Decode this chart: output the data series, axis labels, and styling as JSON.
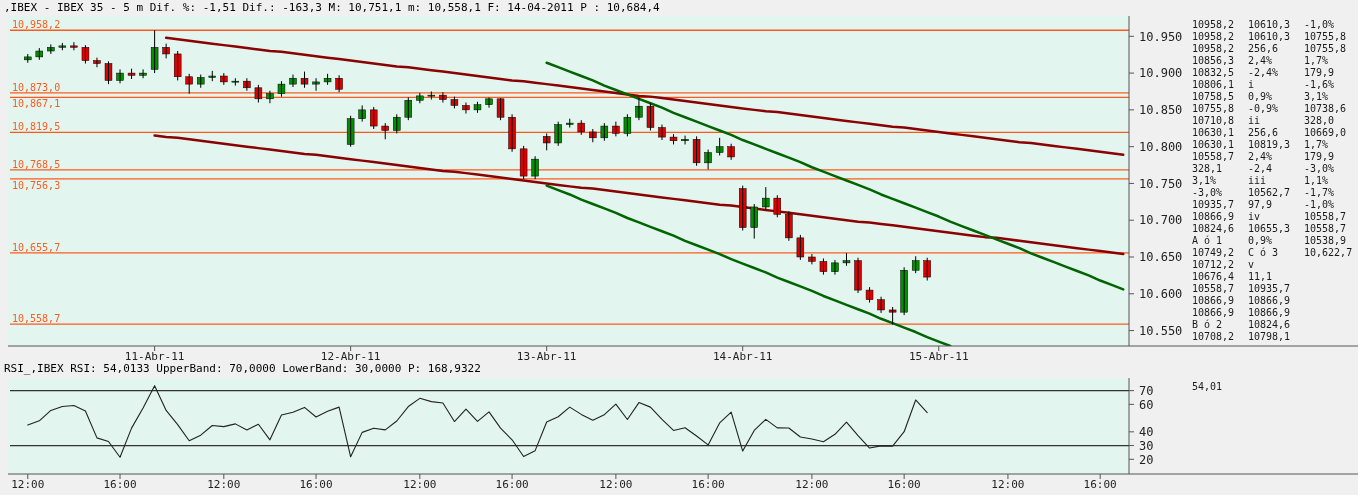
{
  "chart_data": [
    {
      "type": "candlestick",
      "title": ",IBEX - IBEX 35 -  5 m Dif. %: -1,51 Dif.: -163,3 M: 10,751,1 m: 10,558,1 F: 14-04-2011 P : 10,684,4",
      "categories": [
        null,
        null,
        null,
        null,
        null,
        null,
        null,
        null,
        null,
        null,
        null,
        "11-Abr-11",
        null,
        null,
        null,
        null,
        null,
        null,
        null,
        null,
        null,
        null,
        null,
        null,
        null,
        null,
        null,
        null,
        "12-Abr-11",
        null,
        null,
        null,
        null,
        null,
        null,
        null,
        null,
        null,
        null,
        null,
        null,
        null,
        null,
        null,
        null,
        "13-Abr-11",
        null,
        null,
        null,
        null,
        null,
        null,
        null,
        null,
        null,
        null,
        null,
        null,
        null,
        null,
        null,
        null,
        "14-Abr-11",
        null,
        null,
        null,
        null,
        null,
        null,
        null,
        null,
        null,
        null,
        null,
        null,
        null,
        null,
        null,
        null,
        "15-Abr-11",
        null,
        null,
        null,
        null,
        null,
        null,
        null,
        null,
        null,
        null,
        null,
        null,
        null,
        null,
        null,
        null
      ],
      "ohlc": [
        [
          10918,
          10926,
          10914,
          10922
        ],
        [
          10922,
          10934,
          10918,
          10930
        ],
        [
          10930,
          10939,
          10926,
          10935
        ],
        [
          10935,
          10941,
          10931,
          10937
        ],
        [
          10937,
          10942,
          10931,
          10935
        ],
        [
          10935,
          10938,
          10913,
          10917
        ],
        [
          10917,
          10921,
          10908,
          10913
        ],
        [
          10913,
          10916,
          10885,
          10890
        ],
        [
          10890,
          10905,
          10886,
          10900
        ],
        [
          10900,
          10906,
          10892,
          10897
        ],
        [
          10897,
          10905,
          10893,
          10900
        ],
        [
          10905,
          10958.2,
          10900,
          10935
        ],
        [
          10935,
          10940,
          10920,
          10926
        ],
        [
          10926,
          10930,
          10890,
          10895
        ],
        [
          10895,
          10899,
          10872,
          10885
        ],
        [
          10885,
          10898,
          10880,
          10894
        ],
        [
          10894,
          10903,
          10889,
          10896
        ],
        [
          10896,
          10900,
          10884,
          10888
        ],
        [
          10888,
          10893,
          10883,
          10889
        ],
        [
          10889,
          10893,
          10876,
          10880
        ],
        [
          10880,
          10884,
          10860,
          10865
        ],
        [
          10865,
          10876,
          10859,
          10872
        ],
        [
          10872,
          10889,
          10868,
          10885
        ],
        [
          10885,
          10898,
          10881,
          10893
        ],
        [
          10893,
          10902,
          10880,
          10885
        ],
        [
          10885,
          10893,
          10876,
          10888
        ],
        [
          10888,
          10899,
          10884,
          10893
        ],
        [
          10893,
          10897,
          10874,
          10878
        ],
        [
          10803,
          10842,
          10800,
          10838
        ],
        [
          10838,
          10856,
          10834,
          10850
        ],
        [
          10850,
          10854,
          10824,
          10828
        ],
        [
          10828,
          10832,
          10810,
          10822
        ],
        [
          10822,
          10844,
          10818,
          10840
        ],
        [
          10840,
          10867,
          10836,
          10863
        ],
        [
          10863,
          10873,
          10859,
          10869
        ],
        [
          10869,
          10875,
          10864,
          10870
        ],
        [
          10870,
          10874,
          10860,
          10864
        ],
        [
          10864,
          10868,
          10852,
          10856
        ],
        [
          10856,
          10860,
          10845,
          10850
        ],
        [
          10850,
          10861,
          10846,
          10857
        ],
        [
          10857,
          10866.9,
          10853,
          10865
        ],
        [
          10865,
          10866,
          10836,
          10840
        ],
        [
          10840,
          10844,
          10793,
          10797
        ],
        [
          10797,
          10801,
          10756,
          10760
        ],
        [
          10760,
          10787,
          10755.8,
          10783
        ],
        [
          10814,
          10818,
          10795,
          10805
        ],
        [
          10805,
          10834,
          10801,
          10830
        ],
        [
          10830,
          10838,
          10826,
          10832
        ],
        [
          10832,
          10836,
          10816,
          10820
        ],
        [
          10820,
          10824,
          10806,
          10812
        ],
        [
          10812,
          10832,
          10808,
          10828
        ],
        [
          10828,
          10834,
          10814,
          10818
        ],
        [
          10818,
          10844,
          10814,
          10840
        ],
        [
          10840,
          10866.9,
          10836,
          10855
        ],
        [
          10855,
          10859,
          10822,
          10826
        ],
        [
          10826,
          10830,
          10809,
          10813
        ],
        [
          10813,
          10817,
          10803,
          10808
        ],
        [
          10808,
          10815,
          10803,
          10810
        ],
        [
          10810,
          10814,
          10774,
          10778
        ],
        [
          10778,
          10796,
          10769,
          10792
        ],
        [
          10792,
          10812,
          10788,
          10800
        ],
        [
          10800,
          10804,
          10782,
          10786
        ],
        [
          10743,
          10747,
          10686,
          10690
        ],
        [
          10690,
          10722,
          10675,
          10718
        ],
        [
          10718,
          10745,
          10714,
          10730
        ],
        [
          10730,
          10734,
          10704,
          10708
        ],
        [
          10708,
          10712,
          10672,
          10676
        ],
        [
          10676,
          10680,
          10646,
          10650
        ],
        [
          10650,
          10654,
          10640,
          10644
        ],
        [
          10644,
          10648,
          10626,
          10630
        ],
        [
          10630,
          10646,
          10626,
          10642
        ],
        [
          10642,
          10655.3,
          10638,
          10645
        ],
        [
          10645,
          10649,
          10601,
          10605
        ],
        [
          10605,
          10609,
          10588,
          10592
        ],
        [
          10592,
          10596,
          10574,
          10578
        ],
        [
          10578,
          10582,
          10558.1,
          10575
        ],
        [
          10575,
          10636,
          10571,
          10632
        ],
        [
          10632,
          10651,
          10628,
          10645
        ],
        [
          10645,
          10649,
          10618,
          10622.7
        ],
        null,
        null,
        null,
        null,
        null,
        null,
        null,
        null,
        null,
        null,
        null,
        null,
        null,
        null,
        null,
        null,
        null
      ],
      "series": [
        {
          "type": "line",
          "color": "#8b0000",
          "values": [
            null,
            null,
            null,
            null,
            null,
            null,
            null,
            null,
            null,
            null,
            null,
            null,
            10948,
            10946,
            10944,
            10942,
            10940,
            10938,
            10936,
            10934,
            10932,
            10930,
            10929,
            10927,
            10925,
            10923,
            10921,
            10919,
            10917,
            10915,
            10913,
            10911,
            10909,
            10908,
            10906,
            10904,
            10902,
            10900,
            10898,
            10896,
            10894,
            10892,
            10890,
            10889,
            10887,
            10885,
            10883,
            10881,
            10879,
            10877,
            10875,
            10873,
            10871,
            10869,
            10868,
            10866,
            10864,
            10862,
            10860,
            10858,
            10856,
            10854,
            10852,
            10850,
            10848,
            10847,
            10845,
            10843,
            10841,
            10839,
            10837,
            10835,
            10833,
            10831,
            10829,
            10827,
            10826,
            10824,
            10822,
            10820,
            10818,
            10816,
            10814,
            10812,
            10810,
            10808,
            10806,
            10805,
            10803,
            10801,
            10799,
            10797,
            10795,
            10793,
            10791,
            10789
          ]
        },
        {
          "type": "line",
          "color": "#8b0000",
          "values": [
            null,
            null,
            null,
            null,
            null,
            null,
            null,
            null,
            null,
            null,
            null,
            10815,
            10813,
            10812,
            10810,
            10808,
            10806,
            10804,
            10802,
            10800,
            10798,
            10796,
            10794,
            10792,
            10790,
            10789,
            10787,
            10785,
            10783,
            10781,
            10779,
            10777,
            10775,
            10773,
            10771,
            10769,
            10767,
            10766,
            10764,
            10762,
            10760,
            10758,
            10756,
            10754,
            10752,
            10750,
            10748,
            10746,
            10744,
            10743,
            10741,
            10739,
            10737,
            10735,
            10733,
            10731,
            10729,
            10727,
            10725,
            10723,
            10721,
            10720,
            10718,
            10716,
            10714,
            10712,
            10710,
            10708,
            10706,
            10704,
            10702,
            10700,
            10698,
            10697,
            10695,
            10693,
            10691,
            10689,
            10687,
            10685,
            10683,
            10681,
            10679,
            10677,
            10676,
            10674,
            10672,
            10670,
            10668,
            10666,
            10664,
            10662,
            10660,
            10658,
            10656,
            10654
          ]
        },
        {
          "type": "line",
          "color": "#006400",
          "values": [
            null,
            null,
            null,
            null,
            null,
            null,
            null,
            null,
            null,
            null,
            null,
            null,
            null,
            null,
            null,
            null,
            null,
            null,
            null,
            null,
            null,
            null,
            null,
            null,
            null,
            null,
            null,
            null,
            null,
            null,
            null,
            null,
            null,
            null,
            null,
            null,
            null,
            null,
            null,
            null,
            null,
            null,
            null,
            null,
            null,
            10914,
            10908,
            10902,
            10896,
            10890,
            10883,
            10877,
            10871,
            10865,
            10859,
            10853,
            10846,
            10840,
            10834,
            10828,
            10822,
            10816,
            10809,
            10803,
            10797,
            10791,
            10785,
            10779,
            10772,
            10766,
            10760,
            10754,
            10748,
            10742,
            10735,
            10729,
            10723,
            10717,
            10711,
            10705,
            10698,
            10692,
            10686,
            10680,
            10674,
            10668,
            10662,
            10655,
            10649,
            10643,
            10637,
            10631,
            10625,
            10618,
            10612,
            10606
          ]
        },
        {
          "type": "line",
          "color": "#006400",
          "values": [
            null,
            null,
            null,
            null,
            null,
            null,
            null,
            null,
            null,
            null,
            null,
            null,
            null,
            null,
            null,
            null,
            null,
            null,
            null,
            null,
            null,
            null,
            null,
            null,
            null,
            null,
            null,
            null,
            null,
            null,
            null,
            null,
            null,
            null,
            null,
            null,
            null,
            null,
            null,
            null,
            null,
            null,
            null,
            null,
            null,
            10747,
            10741,
            10735,
            10728,
            10722,
            10716,
            10710,
            10703,
            10697,
            10691,
            10685,
            10679,
            10672,
            10666,
            10660,
            10654,
            10647,
            10641,
            10635,
            10629,
            10622,
            10616,
            10610,
            10604,
            10597,
            10591,
            10585,
            10579,
            10573,
            10566,
            10560,
            10554,
            10548,
            10541,
            10535,
            10529,
            null,
            null,
            null,
            null,
            null,
            null,
            null,
            null,
            null,
            null,
            null,
            null,
            null,
            null,
            null
          ]
        }
      ],
      "ylim": [
        10529,
        10977.6
      ],
      "yticks": [
        {
          "value": 10550,
          "label": "10.550"
        },
        {
          "value": 10600,
          "label": "10.600"
        },
        {
          "value": 10650,
          "label": "10.650"
        },
        {
          "value": 10700,
          "label": "10.700"
        },
        {
          "value": 10750,
          "label": "10.750"
        },
        {
          "value": 10800,
          "label": "10.800"
        },
        {
          "value": 10850,
          "label": "10.850"
        },
        {
          "value": 10900,
          "label": "10.900"
        },
        {
          "value": 10950,
          "label": "10.950"
        }
      ],
      "ref_lines": [
        {
          "axis": "y",
          "value": 10958.2,
          "label": "10,958,2",
          "color": "#ff5a1e"
        },
        {
          "axis": "y",
          "value": 10873.0,
          "label": "10,873,0",
          "color": "#ff5a1e"
        },
        {
          "axis": "y",
          "value": 10867.1,
          "label": "10,867,1",
          "color": "#ff5a1e"
        },
        {
          "axis": "y",
          "value": 10819.5,
          "label": "10,819,5",
          "color": "#ff5a1e"
        },
        {
          "axis": "y",
          "value": 10768.5,
          "label": "10,768,5",
          "color": "#ff5a1e"
        },
        {
          "axis": "y",
          "value": 10756.3,
          "label": "10,756,3",
          "color": "#ff5a1e"
        },
        {
          "axis": "y",
          "value": 10655.7,
          "label": "10,655,7",
          "color": "#ff5a1e"
        },
        {
          "axis": "y",
          "value": 10558.7,
          "label": "10,558,7",
          "color": "#ff5a1e"
        }
      ],
      "annotations": [
        "10958,2",
        "10958,2",
        "10958,2",
        "10856,3",
        "10832,5",
        "10806,1",
        "10758,5",
        "10755,8",
        "10710,8",
        "10630,1",
        "10630,1",
        "10558,7",
        "328,1",
        "3,1%",
        "-3,0%",
        "10935,7",
        "10866,9",
        "10824,6",
        "A ó 1",
        "10749,2",
        "10712,2",
        "10676,4",
        "10558,7",
        "10866,9",
        "10866,9",
        "B ó 2",
        "10708,2",
        "10610,3",
        "10610,3",
        "256,6",
        "2,4%",
        "-2,4%",
        "i",
        "0,9%",
        "-0,9%",
        "ii",
        "256,6",
        "10819,3",
        "2,4%",
        "-2,4",
        "iii",
        "10562,7",
        "97,9",
        "iv",
        "10655,3",
        "0,9%",
        "C ó 3",
        "v",
        "11,1",
        "10935,7",
        "10866,9",
        "10866,9",
        "10824,6",
        "10798,1",
        "-1,0%",
        "10755,8",
        "10755,8",
        "1,7%",
        "179,9",
        "-1,6%",
        "3,1%",
        "10738,6",
        "328,0",
        "10669,0",
        "1,7%",
        "179,9",
        "-3,0%",
        "1,1%",
        "-1,7%",
        "-1,0%",
        "10558,7",
        "10558,7",
        "10538,9",
        "10,622,7"
      ]
    },
    {
      "type": "line",
      "title": "RSI_,IBEX RSI: 54,0133 UpperBand: 70,0000 LowerBand: 30,0000 P: 168,9322",
      "categories": [
        "12:00",
        null,
        null,
        null,
        null,
        null,
        null,
        null,
        "16:00",
        null,
        null,
        null,
        null,
        null,
        null,
        null,
        null,
        "12:00",
        null,
        null,
        null,
        null,
        null,
        null,
        null,
        "16:00",
        null,
        null,
        null,
        null,
        null,
        null,
        null,
        null,
        "12:00",
        null,
        null,
        null,
        null,
        null,
        null,
        null,
        "16:00",
        null,
        null,
        null,
        null,
        null,
        null,
        null,
        null,
        "12:00",
        null,
        null,
        null,
        null,
        null,
        null,
        null,
        "16:00",
        null,
        null,
        null,
        null,
        null,
        null,
        null,
        null,
        "12:00",
        null,
        null,
        null,
        null,
        null,
        null,
        null,
        "16:00",
        null,
        null,
        null,
        null,
        null,
        null,
        null,
        null,
        "12:00",
        null,
        null,
        null,
        null,
        null,
        null,
        null,
        "16:00",
        null,
        null
      ],
      "series": [
        {
          "color": "#222222",
          "values": [
            45,
            48,
            55.6,
            58.4,
            59.2,
            55.2,
            35.6,
            33,
            21.5,
            42.7,
            57.4,
            73.6,
            55.6,
            45.3,
            33.5,
            37.6,
            44.6,
            43.8,
            45.8,
            41.3,
            45.5,
            34.2,
            52.2,
            54.2,
            57.8,
            50.8,
            55,
            58,
            21.8,
            39.6,
            42.6,
            41.4,
            47.9,
            58.4,
            64.4,
            62,
            61,
            47.5,
            56.6,
            47.6,
            54.5,
            42.7,
            34.2,
            22,
            26.3,
            47.2,
            51,
            58,
            52.7,
            48.4,
            52.5,
            60.2,
            49,
            61.3,
            58,
            49,
            41,
            43,
            37,
            30.5,
            46.5,
            54.4,
            26,
            41,
            49.1,
            42.9,
            42.8,
            36.2,
            34.8,
            32.8,
            38.2,
            47.1,
            37.2,
            28.2,
            29.8,
            29.6,
            40.1,
            63.2,
            54,
            null,
            null,
            null,
            null,
            null,
            null,
            null,
            null,
            null,
            null,
            null,
            null,
            null,
            null,
            null,
            null,
            null
          ]
        }
      ],
      "ylim": [
        9.3,
        79.2
      ],
      "yticks": [
        20,
        30,
        40,
        60,
        70
      ],
      "ref_lines": [
        {
          "axis": "y",
          "value": 70,
          "color": "#333333"
        },
        {
          "axis": "y",
          "value": 30,
          "color": "#333333"
        }
      ],
      "annotations": [
        "54,01"
      ]
    }
  ]
}
